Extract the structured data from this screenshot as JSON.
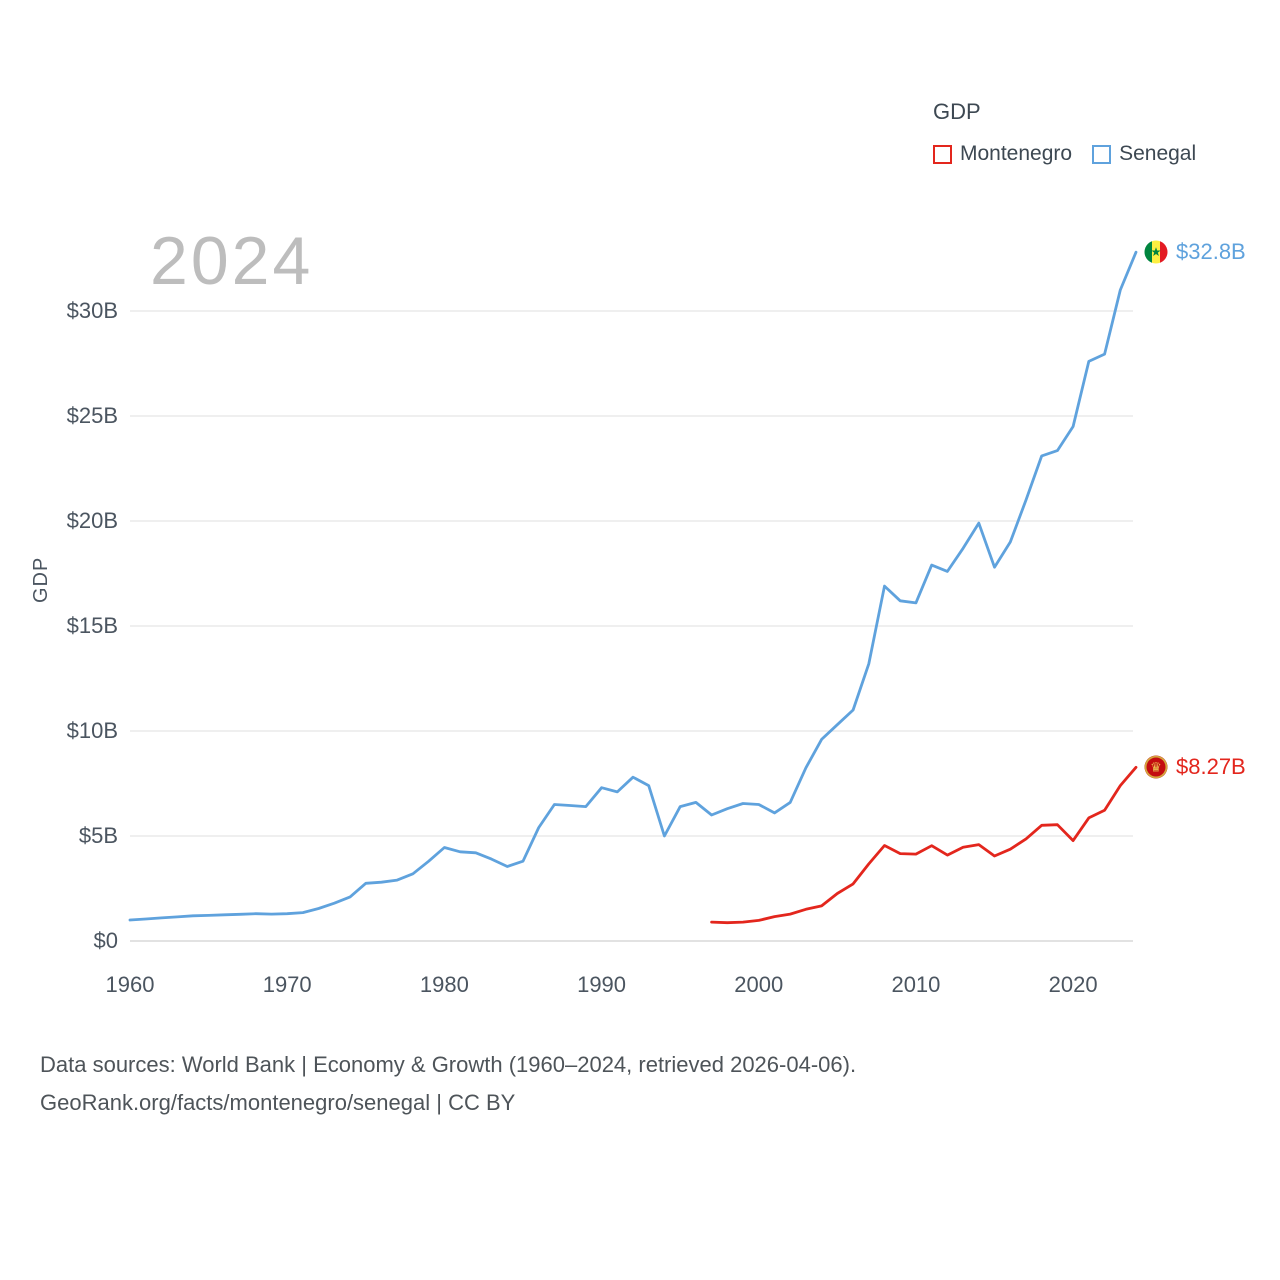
{
  "watermark": "2024",
  "y_axis_label": "GDP",
  "legend": {
    "title": "GDP",
    "items": [
      {
        "label": "Montenegro",
        "color": "#e3261d"
      },
      {
        "label": "Senegal",
        "color": "#5fa2dd"
      }
    ]
  },
  "footer": {
    "line1": "Data sources: World Bank | Economy & Growth (1960–2024, retrieved 2026-04-06).",
    "line2": "GeoRank.org/facts/montenegro/senegal | CC BY"
  },
  "icons": {
    "senegal_flag": "senegal-flag-icon",
    "montenegro_flag": "montenegro-flag-icon"
  },
  "chart_data": {
    "type": "line",
    "title": "GDP",
    "xlabel": "",
    "ylabel": "GDP",
    "xlim": [
      1960,
      2024
    ],
    "ylim": [
      0,
      33
    ],
    "grid": true,
    "legend_position": "top-right",
    "y_ticks": [
      {
        "value": 0,
        "label": "$0"
      },
      {
        "value": 5,
        "label": "$5B"
      },
      {
        "value": 10,
        "label": "$10B"
      },
      {
        "value": 15,
        "label": "$15B"
      },
      {
        "value": 20,
        "label": "$20B"
      },
      {
        "value": 25,
        "label": "$25B"
      },
      {
        "value": 30,
        "label": "$30B"
      }
    ],
    "x_ticks": [
      1960,
      1970,
      1980,
      1990,
      2000,
      2010,
      2020
    ],
    "units": "billions USD",
    "series": [
      {
        "name": "Montenegro",
        "color": "#e3261d",
        "start_year": 1997,
        "end_label": "$8.27B",
        "values": [
          0.9,
          0.87,
          0.9,
          0.98,
          1.16,
          1.28,
          1.51,
          1.67,
          2.26,
          2.72,
          3.67,
          4.55,
          4.16,
          4.14,
          4.54,
          4.09,
          4.46,
          4.59,
          4.05,
          4.37,
          4.86,
          5.51,
          5.54,
          4.78,
          5.86,
          6.23,
          7.4,
          8.27
        ]
      },
      {
        "name": "Senegal",
        "color": "#5fa2dd",
        "start_year": 1960,
        "end_label": "$32.8B",
        "values": [
          1.0,
          1.05,
          1.1,
          1.15,
          1.2,
          1.22,
          1.25,
          1.27,
          1.3,
          1.28,
          1.3,
          1.35,
          1.55,
          1.8,
          2.1,
          2.75,
          2.8,
          2.9,
          3.2,
          3.8,
          4.45,
          4.25,
          4.2,
          3.9,
          3.55,
          3.8,
          5.4,
          6.5,
          6.45,
          6.4,
          7.3,
          7.1,
          7.8,
          7.4,
          5.0,
          6.4,
          6.6,
          6.0,
          6.3,
          6.55,
          6.5,
          6.1,
          6.6,
          8.25,
          9.6,
          10.3,
          11.0,
          13.2,
          16.9,
          16.2,
          16.1,
          17.9,
          17.6,
          18.7,
          19.9,
          17.8,
          19.0,
          21.0,
          23.1,
          23.35,
          24.5,
          27.6,
          27.95,
          31.0,
          32.8
        ]
      }
    ]
  }
}
